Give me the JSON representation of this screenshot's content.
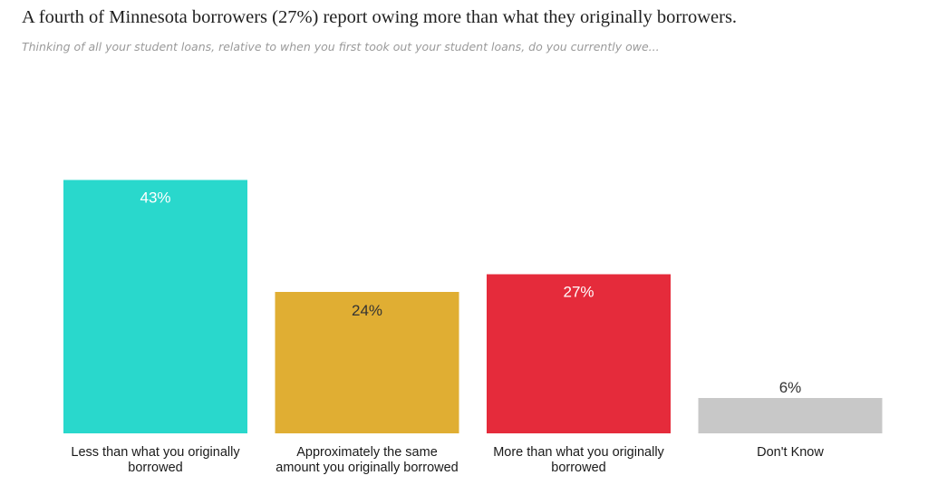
{
  "page": {
    "title": "A fourth of Minnesota borrowers (27%) report owing more than what they originally borrowers.",
    "subtitle": "Thinking of all your student loans, relative to when you first took out your student loans, do you currently owe..."
  },
  "chart_data": {
    "type": "bar",
    "categories": [
      [
        "Less than what you originally",
        "borrowed"
      ],
      [
        "Approximately the same",
        "amount you originally borrowed"
      ],
      [
        "More than what you originally",
        "borrowed"
      ],
      [
        "Don't Know"
      ]
    ],
    "values": [
      43,
      24,
      27,
      6
    ],
    "value_labels": [
      "43%",
      "24%",
      "27%",
      "6%"
    ],
    "colors": [
      "#29d8cc",
      "#e0ae33",
      "#e52b3b",
      "#c8c8c8"
    ],
    "label_color_inside": "#ffffff",
    "label_color_dark": "#333333",
    "grid": false,
    "legend": "none"
  }
}
